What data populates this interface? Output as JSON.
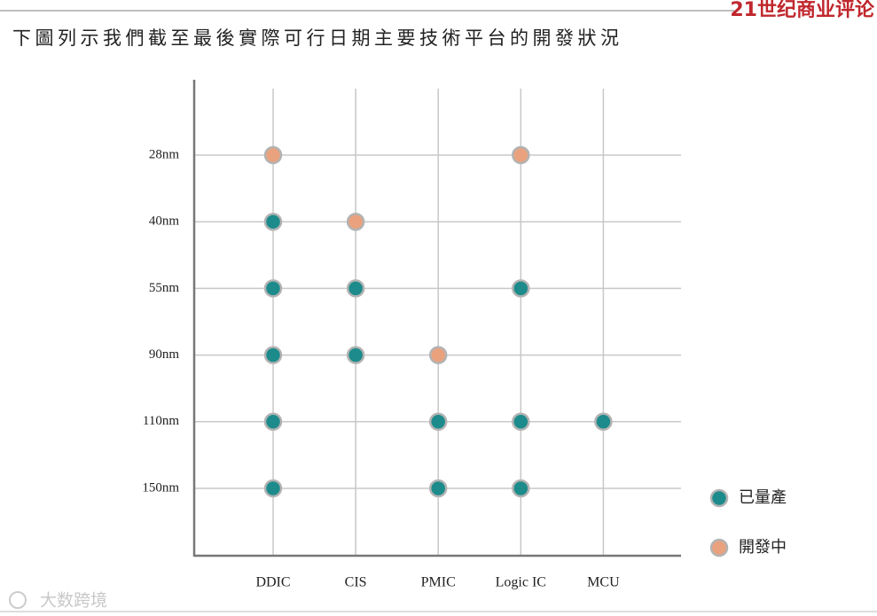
{
  "brand": "21世纪商业评论",
  "watermark": "大数跨境",
  "chart_data": {
    "type": "dot-matrix",
    "title": "下圖列示我們截至最後實際可行日期主要技術平台的開發狀況",
    "categories": [
      "DDIC",
      "CIS",
      "PMIC",
      "Logic IC",
      "MCU"
    ],
    "rows": [
      "28nm",
      "40nm",
      "55nm",
      "90nm",
      "110nm",
      "150nm"
    ],
    "grid": true,
    "legend": "right-bottom",
    "series": [
      {
        "name": "已量產",
        "color": "#1d8b8b",
        "points": [
          [
            "DDIC",
            "40nm"
          ],
          [
            "DDIC",
            "55nm"
          ],
          [
            "CIS",
            "55nm"
          ],
          [
            "Logic IC",
            "55nm"
          ],
          [
            "DDIC",
            "90nm"
          ],
          [
            "CIS",
            "90nm"
          ],
          [
            "DDIC",
            "110nm"
          ],
          [
            "PMIC",
            "110nm"
          ],
          [
            "Logic IC",
            "110nm"
          ],
          [
            "MCU",
            "110nm"
          ],
          [
            "DDIC",
            "150nm"
          ],
          [
            "PMIC",
            "150nm"
          ],
          [
            "Logic IC",
            "150nm"
          ]
        ]
      },
      {
        "name": "開發中",
        "color": "#e9a27d",
        "points": [
          [
            "DDIC",
            "28nm"
          ],
          [
            "Logic IC",
            "28nm"
          ],
          [
            "CIS",
            "40nm"
          ],
          [
            "PMIC",
            "90nm"
          ]
        ]
      }
    ]
  }
}
